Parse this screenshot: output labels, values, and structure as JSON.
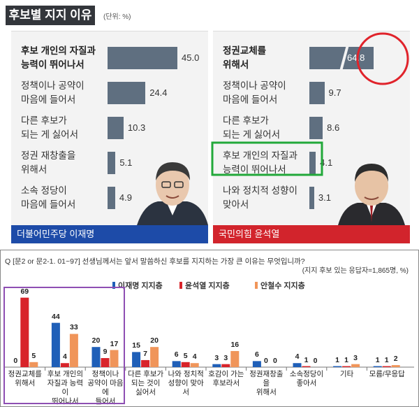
{
  "top": {
    "title": "후보별 지지 이유",
    "unit": "(단위: %)",
    "left_label": "더불어민주당 이재명",
    "right_label": "국민의힘 윤석열"
  },
  "bottom": {
    "question": "Q [문2 or 문2-1. 01~97] 선생님께서는 앞서 말씀하신 후보를 지지하는 가장 큰 이유는 무엇입니까?",
    "note": "(지지 후보 있는 응답자=1,865명, %)"
  },
  "chart_data": [
    {
      "type": "bar",
      "title": "후보별 지지 이유",
      "panel": "더불어민주당 이재명",
      "categories": [
        "후보 개인의 자질과 능력이 뛰어나서",
        "정책이나 공약이 마음에 들어서",
        "다른 후보가 되는 게 싫어서서",
        "정권 재창출을 위해서",
        "소속 정당이 마음에 들어서"
      ],
      "labels": [
        [
          "후보 개인의 자질과",
          "능력이 뛰어나서"
        ],
        [
          "정책이나 공약이",
          "마음에 들어서"
        ],
        [
          "다른 후보가",
          "되는 게 싫어서"
        ],
        [
          "정권 재창출을",
          "위해서"
        ],
        [
          "소속 정당이",
          "마음에 들어서"
        ]
      ],
      "values": [
        45.0,
        24.4,
        10.3,
        5.1,
        4.9
      ],
      "value_labels": [
        "45.0",
        "24.4",
        "10.3",
        "5.1",
        "4.9"
      ],
      "orientation": "horizontal"
    },
    {
      "type": "bar",
      "panel": "국민의힘 윤석열",
      "categories": [
        "정권교체를 위해서",
        "정책이나 공약이 마음에 들어서",
        "다른 후보가 되는 게 싫어서",
        "후보 개인의 자질과 능력이 뛰어나서",
        "나와 정치적 성향이 맞아서"
      ],
      "labels": [
        [
          "정권교체를",
          "위해서"
        ],
        [
          "정책이나 공약이",
          "마음에 들어서"
        ],
        [
          "다른 후보가",
          "되는 게 싫어서"
        ],
        [
          "후보 개인의 자질과",
          "능력이 뛰어나서"
        ],
        [
          "나와 정치적 성향이",
          "맞아서"
        ]
      ],
      "values": [
        64.8,
        9.7,
        8.6,
        4.1,
        3.1
      ],
      "value_labels": [
        "64.8",
        "9.7",
        "8.6",
        "4.1",
        "3.1"
      ],
      "orientation": "horizontal",
      "broken_axis": true
    },
    {
      "type": "bar",
      "title": "",
      "categories": [
        [
          "정권교체를",
          "위해서"
        ],
        [
          "후보 개인의",
          "자질과 능력이",
          "뛰어나서"
        ],
        [
          "정책이나",
          "공약이 마음에",
          "들어서"
        ],
        [
          "다른 후보가",
          "되는 것이",
          "싫어서"
        ],
        [
          "나와 정치적",
          "성향이 맞아서"
        ],
        [
          "호감이 가는",
          "후보라서"
        ],
        [
          "정권재창출을",
          "위해서"
        ],
        [
          "소속정당이",
          "좋아서"
        ],
        [
          "기타"
        ],
        [
          "모름/무응답"
        ]
      ],
      "series": [
        {
          "name": "이재명 지지층",
          "color": "#1f5fb8",
          "values": [
            0,
            44,
            20,
            15,
            6,
            3,
            6,
            4,
            1,
            1
          ]
        },
        {
          "name": "윤석열 지지층",
          "color": "#d8232a",
          "values": [
            69,
            4,
            9,
            7,
            5,
            3,
            0,
            1,
            1,
            1
          ]
        },
        {
          "name": "안철수 지지층",
          "color": "#f0955a",
          "values": [
            5,
            33,
            17,
            20,
            4,
            16,
            0,
            0,
            3,
            2
          ]
        }
      ],
      "legend": "top-center",
      "ylim": [
        0,
        75
      ]
    }
  ]
}
